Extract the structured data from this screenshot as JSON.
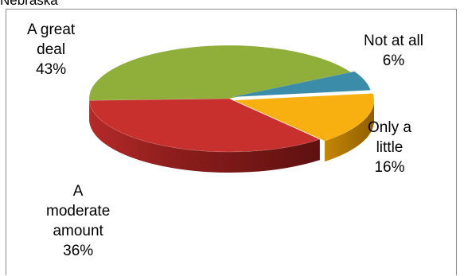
{
  "title_fragment": "Nebraska",
  "chart_data": {
    "type": "pie",
    "style": "3d-exploded-tilted",
    "slices": [
      {
        "label": "A great deal",
        "label_lines": [
          "A great",
          "deal"
        ],
        "value": 43,
        "value_label": "43%",
        "color": "#8FAE3A"
      },
      {
        "label": "Not at all",
        "label_lines": [
          "Not at all"
        ],
        "value": 6,
        "value_label": "6%",
        "color": "#3A8CA8"
      },
      {
        "label": "Only a little",
        "label_lines": [
          "Only a",
          "little"
        ],
        "value": 16,
        "value_label": "16%",
        "color": "#F8B010"
      },
      {
        "label": "A moderate amount",
        "label_lines": [
          "A",
          "moderate",
          "amount"
        ],
        "value": 36,
        "value_label": "36%",
        "color": "#C8302E"
      }
    ],
    "legend": "none",
    "grid": false
  }
}
